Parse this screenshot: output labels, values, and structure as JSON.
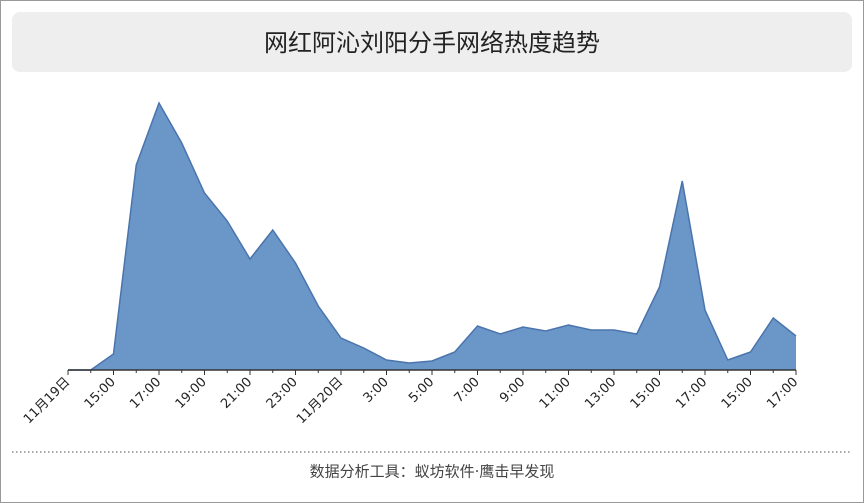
{
  "chart_data": {
    "type": "area",
    "title": "网红阿沁刘阳分手网络热度趋势",
    "categories": [
      "11月19日",
      null,
      "15:00",
      null,
      "17:00",
      null,
      "19:00",
      null,
      "21:00",
      null,
      "23:00",
      null,
      "11月20日",
      null,
      "3:00",
      null,
      "5:00",
      null,
      "7:00",
      null,
      "9:00",
      null,
      "11:00",
      null,
      "13:00",
      null,
      "15:00",
      null,
      "17:00",
      null,
      "15:00",
      null,
      "17:00"
    ],
    "values": [
      0,
      0,
      16,
      205,
      267,
      227,
      177,
      149,
      111,
      140,
      107,
      64,
      32,
      22,
      10,
      7,
      9,
      18,
      44,
      36,
      43,
      39,
      45,
      40,
      40,
      36,
      83,
      189,
      60,
      10,
      18,
      52,
      34
    ],
    "color": "#6a96c8",
    "line_color": "#4a74ad",
    "ylim": [
      0,
      280
    ],
    "footer": "数据分析工具：蚁坊软件·鹰击早发现"
  }
}
